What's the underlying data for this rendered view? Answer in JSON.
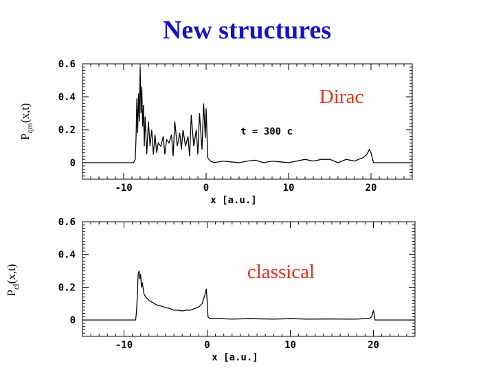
{
  "title": "New structures",
  "chart_data": [
    {
      "type": "line",
      "series_label": "Dirac",
      "ylabel": "P",
      "ylabel_sub": "qm",
      "ylabel_args": "(x,t)",
      "xlabel": "x  [a.u.]",
      "annotation": "t = 300 c",
      "xlim": [
        -15,
        25
      ],
      "ylim": [
        -0.1,
        0.6
      ],
      "xticks": [
        -10,
        0,
        10,
        20
      ],
      "xtick_labels": [
        "-10",
        "0",
        "10",
        "20"
      ],
      "yticks": [
        0,
        0.2,
        0.4,
        0.6
      ],
      "ytick_labels": [
        "0",
        "0.2",
        "0.4",
        "0.6"
      ],
      "color": "#000000",
      "series": [
        {
          "values_description_free": true,
          "x": [
            -15,
            -8.8,
            -8.6,
            -8.5,
            -8.4,
            -8.3,
            -8.2,
            -8.1,
            -8.0,
            -7.9,
            -7.8,
            -7.7,
            -7.6,
            -7.5,
            -7.4,
            -7.2,
            -7.0,
            -6.8,
            -6.6,
            -6.4,
            -6.2,
            -6.0,
            -5.8,
            -5.5,
            -5.2,
            -5.0,
            -4.8,
            -4.5,
            -4.2,
            -4.0,
            -3.8,
            -3.5,
            -3.2,
            -3.0,
            -2.8,
            -2.5,
            -2.2,
            -2.0,
            -1.8,
            -1.5,
            -1.2,
            -1.0,
            -0.8,
            -0.5,
            -0.3,
            -0.1,
            0.0,
            0.2,
            0.5,
            1.0,
            2.0,
            3.0,
            4.0,
            5.0,
            6.0,
            7.0,
            8.0,
            9.0,
            10.0,
            11.0,
            12.0,
            13.0,
            14.0,
            15.0,
            16.0,
            17.0,
            18.0,
            19.0,
            19.5,
            19.8,
            20.0,
            20.3,
            25
          ],
          "y": [
            0,
            0,
            0.02,
            0.15,
            0.39,
            0.18,
            0.42,
            0.25,
            0.58,
            0.3,
            0.46,
            0.22,
            0.35,
            0.1,
            0.28,
            0.05,
            0.25,
            0.1,
            0.2,
            0.05,
            0.17,
            0.06,
            0.12,
            0.1,
            0.16,
            0.05,
            0.14,
            0.12,
            0.17,
            0.04,
            0.25,
            0.1,
            0.18,
            0.08,
            0.2,
            0.1,
            0.16,
            0.04,
            0.29,
            0.1,
            0.2,
            0.05,
            0.3,
            0.08,
            0.36,
            0.15,
            0.33,
            0.03,
            0.01,
            0.0,
            0.01,
            0.005,
            0.0,
            0.01,
            0.015,
            0.0,
            0.01,
            0.005,
            0.0,
            0.01,
            0.02,
            0.01,
            0.02,
            0.02,
            0.0,
            0.02,
            0.01,
            0.03,
            0.05,
            0.08,
            0.06,
            0.0,
            0
          ]
        }
      ]
    },
    {
      "type": "line",
      "series_label": "classical",
      "ylabel": "P",
      "ylabel_sub": "cl",
      "ylabel_args": "(x,t)",
      "xlabel": "x  [a.u.]",
      "xlim": [
        -15,
        25
      ],
      "ylim": [
        -0.1,
        0.6
      ],
      "xticks": [
        -10,
        0,
        10,
        20
      ],
      "xtick_labels": [
        "-10",
        "0",
        "10",
        "20"
      ],
      "yticks": [
        0,
        0.2,
        0.4,
        0.6
      ],
      "ytick_labels": [
        "0",
        "0.2",
        "0.4",
        "0.6"
      ],
      "color": "#000000",
      "series": [
        {
          "x": [
            -15,
            -8.6,
            -8.5,
            -8.4,
            -8.3,
            -8.2,
            -8.1,
            -8.0,
            -7.9,
            -7.8,
            -7.6,
            -7.4,
            -7.0,
            -6.5,
            -6.0,
            -5.5,
            -5.0,
            -4.5,
            -4.0,
            -3.5,
            -3.0,
            -2.5,
            -2.0,
            -1.5,
            -1.0,
            -0.6,
            -0.3,
            -0.1,
            0.0,
            0.1,
            0.3,
            1.0,
            3.0,
            5.0,
            8.0,
            10.0,
            12.0,
            15.0,
            18.0,
            19.5,
            19.8,
            20.0,
            20.2,
            25
          ],
          "y": [
            0,
            0,
            0.05,
            0.15,
            0.28,
            0.3,
            0.25,
            0.28,
            0.2,
            0.23,
            0.16,
            0.14,
            0.12,
            0.105,
            0.09,
            0.085,
            0.075,
            0.07,
            0.06,
            0.06,
            0.055,
            0.06,
            0.06,
            0.07,
            0.08,
            0.1,
            0.15,
            0.19,
            0.12,
            0.02,
            0.01,
            0.01,
            0.005,
            0.008,
            0.005,
            0.008,
            0.005,
            0.006,
            0.005,
            0.01,
            0.02,
            0.06,
            0.0,
            0
          ]
        }
      ]
    }
  ]
}
